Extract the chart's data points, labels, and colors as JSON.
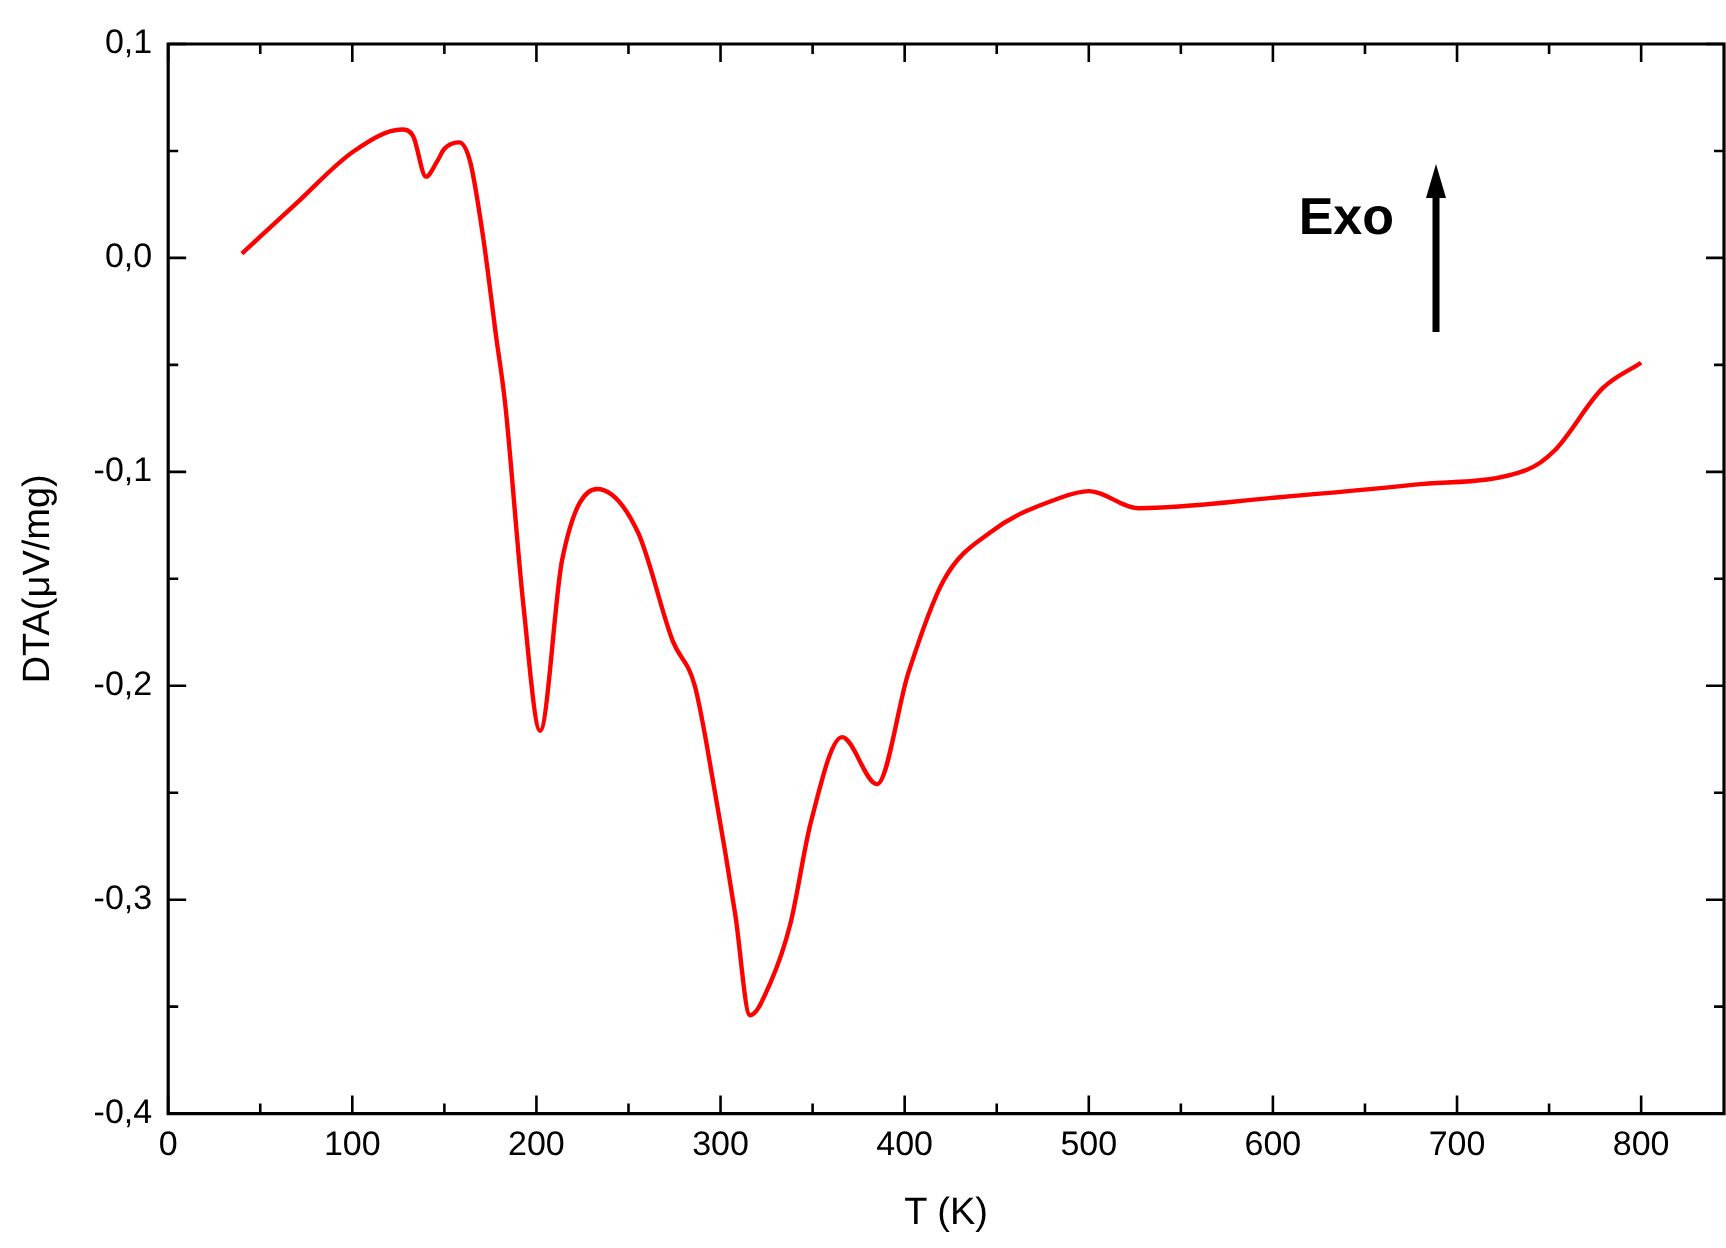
{
  "chart_data": {
    "type": "line",
    "xlabel": "T (K)",
    "ylabel": "DTA(μV/mg)",
    "annotations": [
      "Exo"
    ],
    "x": [
      40,
      69,
      101,
      127,
      133,
      140,
      146,
      150,
      158,
      164,
      171,
      178,
      183,
      193,
      202,
      214,
      233,
      255,
      274,
      286,
      297,
      308,
      316,
      327,
      338,
      349,
      366,
      385,
      402,
      421,
      447,
      485,
      500,
      527,
      602,
      677,
      738,
      753,
      779,
      800
    ],
    "series": [
      {
        "color": "#ff0000",
        "values": [
          0.002,
          0.025,
          0.05,
          0.06,
          0.057,
          0.038,
          0.045,
          0.051,
          0.054,
          0.045,
          0.01,
          -0.036,
          -0.068,
          -0.163,
          -0.221,
          -0.141,
          -0.108,
          -0.128,
          -0.179,
          -0.2,
          -0.25,
          -0.307,
          -0.354,
          -0.339,
          -0.311,
          -0.264,
          -0.224,
          -0.246,
          -0.194,
          -0.151,
          -0.128,
          -0.112,
          -0.109,
          -0.117,
          -0.112,
          -0.106,
          -0.099,
          -0.09,
          -0.061,
          -0.049
        ]
      }
    ],
    "xlim": [
      0,
      845
    ],
    "xticks": [
      0,
      {
        "value": 50,
        "label": null
      },
      100,
      {
        "value": 150,
        "label": null
      },
      200,
      {
        "value": 250,
        "label": null
      },
      300,
      {
        "value": 350,
        "label": null
      },
      400,
      {
        "value": 450,
        "label": null
      },
      500,
      {
        "value": 550,
        "label": null
      },
      600,
      {
        "value": 650,
        "label": null
      },
      700,
      {
        "value": 750,
        "label": null
      },
      800
    ],
    "ylim": [
      -0.4,
      0.1
    ],
    "yticks": [
      {
        "value": -0.4,
        "label": "-0,4"
      },
      {
        "value": -0.35,
        "label": null
      },
      {
        "value": -0.3,
        "label": "-0,3"
      },
      {
        "value": -0.25,
        "label": null
      },
      {
        "value": -0.2,
        "label": "-0,2"
      },
      {
        "value": -0.15,
        "label": null
      },
      {
        "value": -0.1,
        "label": "-0,1"
      },
      {
        "value": -0.05,
        "label": null
      },
      {
        "value": 0,
        "label": "0,0"
      },
      {
        "value": 0.05,
        "label": null
      },
      {
        "value": 0.1,
        "label": "0,1"
      }
    ],
    "grid": false,
    "legend": false,
    "marker": "none",
    "line_style": "solid"
  }
}
